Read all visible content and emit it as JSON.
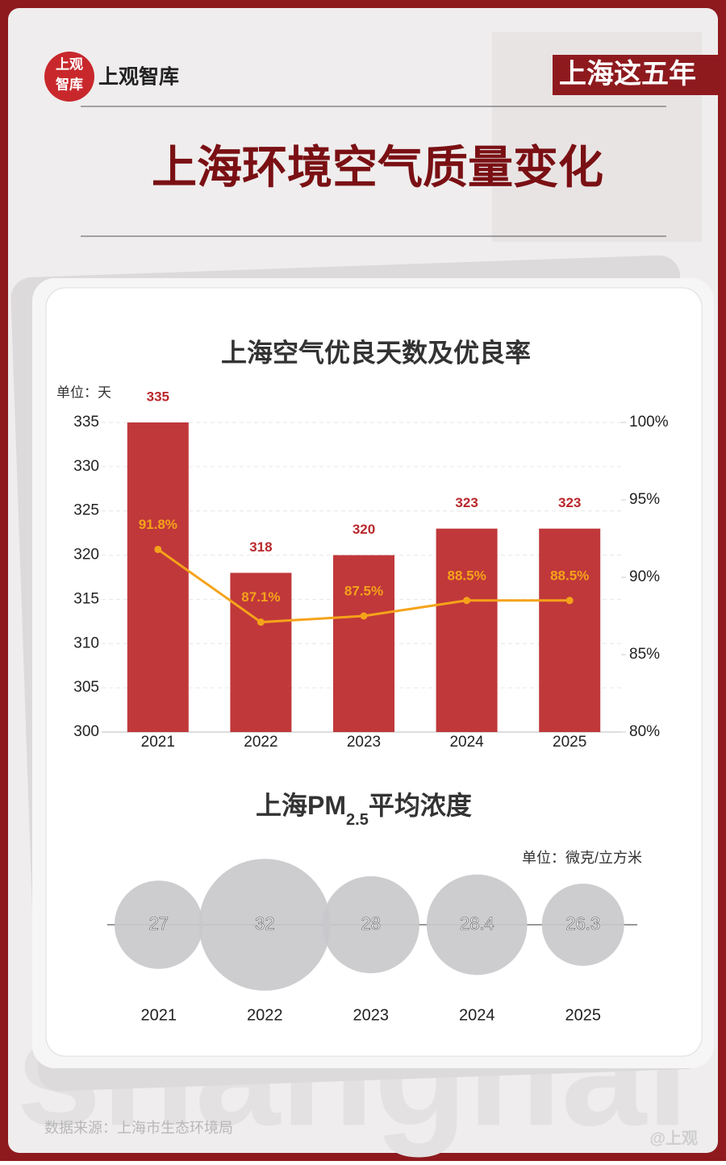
{
  "header": {
    "badge": [
      "上观",
      "智库"
    ],
    "brand": "上观智库",
    "tag": "上海这五年",
    "title": "上海环境空气质量变化"
  },
  "chart_data": [
    {
      "type": "bar",
      "title": "上海空气优良天数及优良率",
      "unit": "单位：天",
      "categories": [
        "2021",
        "2022",
        "2023",
        "2024",
        "2025"
      ],
      "series": [
        {
          "type": "bar",
          "color": "#c0383a",
          "values": [
            335,
            318,
            320,
            323,
            323
          ]
        },
        {
          "type": "line",
          "axis": "y2",
          "color": "#f5a31a",
          "values": [
            91.8,
            87.1,
            87.5,
            88.5,
            88.5
          ],
          "value_labels": [
            "91.8%",
            "87.1%",
            "87.5%",
            "88.5%",
            "88.5%"
          ]
        }
      ],
      "ylim": [
        300,
        335
      ],
      "yticks": [
        300,
        305,
        310,
        315,
        320,
        325,
        330,
        335
      ],
      "y2lim": [
        80,
        100
      ],
      "y2ticks": [
        {
          "value": 80,
          "label": "80%"
        },
        {
          "value": 85,
          "label": "85%"
        },
        {
          "value": 90,
          "label": "90%"
        },
        {
          "value": 95,
          "label": "95%"
        },
        {
          "value": 100,
          "label": "100%"
        }
      ],
      "grid": true
    },
    {
      "type": "bubble",
      "title": [
        "上海PM",
        "2.5",
        "平均浓度"
      ],
      "unit": "单位：微克/立方米",
      "categories": [
        "2021",
        "2022",
        "2023",
        "2024",
        "2025"
      ],
      "values": [
        27,
        32,
        28,
        28.4,
        26.3
      ],
      "color": "#c9c9cc"
    }
  ],
  "footer": {
    "source": "数据来源：上海市生态环境局",
    "watermark": "shanghai",
    "mark": "@上观"
  }
}
